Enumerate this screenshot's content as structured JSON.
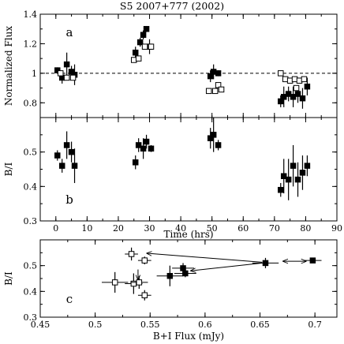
{
  "title": "S5 2007+777 (2002)",
  "chart_data": [
    {
      "panel": "a",
      "type": "scatter",
      "ylabel": "Normalized Flux",
      "xlabel": "",
      "xlim": [
        -5,
        90
      ],
      "ylim": [
        0.7,
        1.4
      ],
      "yticks": [
        0.8,
        1.0,
        1.2,
        1.4
      ],
      "ytick_labels": [
        "0.8",
        "1",
        "1.2",
        "1.4"
      ],
      "reference_line": 1.0,
      "series": [
        {
          "marker": "filled-square",
          "points": [
            {
              "x": 0.5,
              "y": 1.02,
              "err": 0.02
            },
            {
              "x": 2.0,
              "y": 0.97,
              "err": 0.04
            },
            {
              "x": 3.5,
              "y": 1.06,
              "err": 0.08
            },
            {
              "x": 5.0,
              "y": 1.01,
              "err": 0.04
            },
            {
              "x": 6.0,
              "y": 0.99,
              "err": 0.07
            },
            {
              "x": 25.5,
              "y": 1.14,
              "err": 0.04
            },
            {
              "x": 27.0,
              "y": 1.21,
              "err": 0.03
            },
            {
              "x": 28.0,
              "y": 1.26,
              "err": 0.03
            },
            {
              "x": 29.0,
              "y": 1.3,
              "err": 0.02
            },
            {
              "x": 30.0,
              "y": 1.18,
              "err": 0.05
            },
            {
              "x": 49.5,
              "y": 0.98,
              "err": 0.04
            },
            {
              "x": 50.5,
              "y": 1.01,
              "err": 0.05
            },
            {
              "x": 52.0,
              "y": 1.0,
              "err": 0.02
            },
            {
              "x": 72.0,
              "y": 0.81,
              "err": 0.04
            },
            {
              "x": 73.0,
              "y": 0.84,
              "err": 0.07
            },
            {
              "x": 74.5,
              "y": 0.86,
              "err": 0.05
            },
            {
              "x": 76.0,
              "y": 0.84,
              "err": 0.07
            },
            {
              "x": 77.5,
              "y": 0.86,
              "err": 0.06
            },
            {
              "x": 79.0,
              "y": 0.83,
              "err": 0.07
            },
            {
              "x": 80.5,
              "y": 0.91,
              "err": 0.06
            }
          ]
        },
        {
          "marker": "open-square",
          "points": [
            {
              "x": 1.5,
              "y": 1.0
            },
            {
              "x": 3.5,
              "y": 0.97
            },
            {
              "x": 5.5,
              "y": 0.97
            },
            {
              "x": 25.0,
              "y": 1.09
            },
            {
              "x": 26.5,
              "y": 1.1
            },
            {
              "x": 28.5,
              "y": 1.18
            },
            {
              "x": 30.5,
              "y": 1.18
            },
            {
              "x": 49.0,
              "y": 0.88
            },
            {
              "x": 51.0,
              "y": 0.88
            },
            {
              "x": 52.0,
              "y": 0.92
            },
            {
              "x": 53.0,
              "y": 0.89
            },
            {
              "x": 72.0,
              "y": 1.0
            },
            {
              "x": 73.5,
              "y": 0.96
            },
            {
              "x": 75.0,
              "y": 0.95
            },
            {
              "x": 76.5,
              "y": 0.96
            },
            {
              "x": 78.0,
              "y": 0.95
            },
            {
              "x": 79.5,
              "y": 0.96
            },
            {
              "x": 77.0,
              "y": 0.9
            }
          ]
        }
      ]
    },
    {
      "panel": "b",
      "type": "scatter",
      "ylabel": "B/I",
      "xlabel": "Time (hrs)",
      "xlim": [
        -5,
        90
      ],
      "ylim": [
        0.3,
        0.6
      ],
      "xticks": [
        0,
        10,
        20,
        30,
        40,
        50,
        60,
        70,
        80,
        90
      ],
      "yticks": [
        0.3,
        0.4,
        0.5
      ],
      "ytick_labels": [
        "0.3",
        "0.4",
        "0.5"
      ],
      "series": [
        {
          "marker": "filled-square",
          "points": [
            {
              "x": 0.5,
              "y": 0.49,
              "err": 0.015
            },
            {
              "x": 2.0,
              "y": 0.46,
              "err": 0.02
            },
            {
              "x": 3.5,
              "y": 0.52,
              "err": 0.04
            },
            {
              "x": 5.0,
              "y": 0.5,
              "err": 0.03
            },
            {
              "x": 6.0,
              "y": 0.46,
              "err": 0.05
            },
            {
              "x": 25.5,
              "y": 0.47,
              "err": 0.02
            },
            {
              "x": 26.5,
              "y": 0.52,
              "err": 0.02
            },
            {
              "x": 28.0,
              "y": 0.51,
              "err": 0.03
            },
            {
              "x": 29.0,
              "y": 0.53,
              "err": 0.02
            },
            {
              "x": 30.5,
              "y": 0.51,
              "err": 0.01
            },
            {
              "x": 49.5,
              "y": 0.54,
              "err": 0.03
            },
            {
              "x": 50.5,
              "y": 0.55,
              "err": 0.05
            },
            {
              "x": 52.0,
              "y": 0.52,
              "err": 0.015
            },
            {
              "x": 72.0,
              "y": 0.39,
              "err": 0.02
            },
            {
              "x": 73.0,
              "y": 0.43,
              "err": 0.05
            },
            {
              "x": 74.5,
              "y": 0.42,
              "err": 0.06
            },
            {
              "x": 76.0,
              "y": 0.46,
              "err": 0.06
            },
            {
              "x": 77.5,
              "y": 0.42,
              "err": 0.05
            },
            {
              "x": 79.0,
              "y": 0.44,
              "err": 0.05
            },
            {
              "x": 80.5,
              "y": 0.46,
              "err": 0.03
            }
          ]
        }
      ]
    },
    {
      "panel": "c",
      "type": "scatter",
      "ylabel": "B/I",
      "xlabel": "B+I Flux (mJy)",
      "xlim": [
        0.45,
        0.72
      ],
      "ylim": [
        0.3,
        0.6
      ],
      "xticks": [
        0.45,
        0.5,
        0.55,
        0.6,
        0.65,
        0.7
      ],
      "xtick_labels": [
        "0.45",
        "0.5",
        "0.55",
        "0.6",
        "0.65",
        "0.7"
      ],
      "yticks": [
        0.3,
        0.4,
        0.5
      ],
      "ytick_labels": [
        "0.3",
        "0.4",
        "0.5"
      ],
      "series": [
        {
          "marker": "filled-square",
          "points": [
            {
              "x": 0.568,
              "y": 0.46,
              "xerr": 0.012,
              "yerr": 0.04
            },
            {
              "x": 0.58,
              "y": 0.49,
              "xerr": 0.01,
              "yerr": 0.02
            },
            {
              "x": 0.582,
              "y": 0.47,
              "xerr": 0.01,
              "yerr": 0.015
            },
            {
              "x": 0.655,
              "y": 0.51,
              "xerr": 0.012,
              "yerr": 0.02
            },
            {
              "x": 0.698,
              "y": 0.52,
              "xerr": 0.008,
              "yerr": 0.01
            }
          ]
        },
        {
          "marker": "open-square",
          "points": [
            {
              "x": 0.533,
              "y": 0.545,
              "xerr": 0.006,
              "yerr": 0.025
            },
            {
              "x": 0.545,
              "y": 0.52,
              "xerr": 0.006,
              "yerr": 0.015
            },
            {
              "x": 0.518,
              "y": 0.435,
              "xerr": 0.012,
              "yerr": 0.04
            },
            {
              "x": 0.535,
              "y": 0.43,
              "xerr": 0.008,
              "yerr": 0.04
            },
            {
              "x": 0.54,
              "y": 0.435,
              "xerr": 0.008,
              "yerr": 0.025
            },
            {
              "x": 0.545,
              "y": 0.385,
              "xerr": 0.006,
              "yerr": 0.02
            }
          ]
        }
      ],
      "arrows": [
        {
          "from": [
            0.652,
            0.513
          ],
          "to": [
            0.547,
            0.548
          ]
        },
        {
          "from": [
            0.652,
            0.51
          ],
          "to": [
            0.587,
            0.48
          ]
        },
        {
          "from": [
            0.671,
            0.517
          ],
          "to": [
            0.692,
            0.517
          ],
          "double": true
        },
        {
          "from": [
            0.539,
            0.485
          ],
          "to": [
            0.539,
            0.445
          ]
        }
      ]
    }
  ]
}
